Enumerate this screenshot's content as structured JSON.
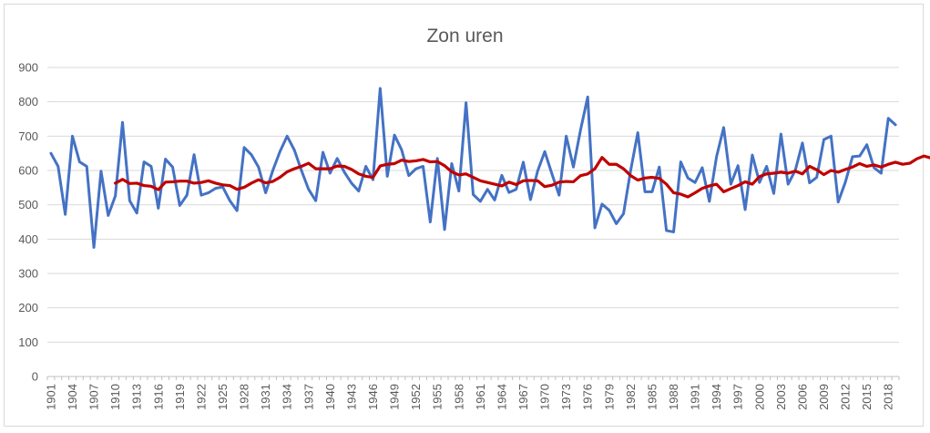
{
  "chart_data": {
    "type": "line",
    "title": "Zon uren",
    "xlabel": "",
    "ylabel": "",
    "ylim": [
      0,
      900
    ],
    "yticks": [
      0,
      100,
      200,
      300,
      400,
      500,
      600,
      700,
      800,
      900
    ],
    "xticks": [
      1901,
      1904,
      1907,
      1910,
      1913,
      1916,
      1919,
      1922,
      1925,
      1928,
      1931,
      1934,
      1937,
      1940,
      1943,
      1946,
      1949,
      1952,
      1955,
      1958,
      1961,
      1964,
      1967,
      1970,
      1973,
      1976,
      1979,
      1982,
      1985,
      1988,
      1991,
      1994,
      1997,
      2000,
      2003,
      2006,
      2009,
      2012,
      2015,
      2018
    ],
    "grid": "horizontal",
    "legend": "none",
    "x_start": 1901,
    "series": [
      {
        "color": "#4472c4",
        "values": [
          650,
          612,
          472,
          700,
          625,
          612,
          376,
          598,
          469,
          526,
          740,
          512,
          476,
          625,
          612,
          490,
          633,
          610,
          498,
          528,
          646,
          528,
          535,
          548,
          552,
          512,
          483,
          667,
          646,
          610,
          535,
          600,
          655,
          700,
          660,
          600,
          545,
          512,
          653,
          592,
          635,
          595,
          563,
          540,
          612,
          573,
          839,
          583,
          703,
          660,
          585,
          605,
          612,
          450,
          635,
          428,
          620,
          540,
          797,
          530,
          510,
          545,
          514,
          586,
          536,
          545,
          624,
          515,
          598,
          655,
          590,
          528,
          700,
          610,
          718,
          814,
          433,
          502,
          484,
          445,
          474,
          600,
          710,
          538,
          538,
          610,
          425,
          421,
          625,
          578,
          565,
          608,
          510,
          640,
          725,
          560,
          614,
          486,
          645,
          565,
          612,
          533,
          706,
          560,
          600,
          680,
          564,
          580,
          690,
          700,
          508,
          566,
          640,
          642,
          675,
          608,
          592,
          752,
          733
        ]
      },
      {
        "color": "#c00000",
        "start_year": 1910,
        "values": [
          563,
          574,
          562,
          563,
          556,
          554,
          544,
          566,
          567,
          569,
          569,
          563,
          565,
          570,
          563,
          558,
          556,
          545,
          551,
          563,
          573,
          564,
          568,
          580,
          596,
          605,
          612,
          621,
          605,
          605,
          605,
          613,
          612,
          603,
          590,
          583,
          580,
          613,
          618,
          620,
          630,
          626,
          628,
          632,
          625,
          626,
          614,
          596,
          587,
          590,
          580,
          570,
          565,
          560,
          555,
          566,
          559,
          570,
          571,
          570,
          553,
          557,
          566,
          568,
          567,
          585,
          590,
          605,
          638,
          618,
          618,
          605,
          585,
          572,
          578,
          580,
          577,
          560,
          535,
          531,
          523,
          535,
          548,
          555,
          560,
          538,
          547,
          556,
          567,
          560,
          582,
          590,
          592,
          595,
          592,
          598,
          590,
          612,
          602,
          588,
          600,
          595,
          603,
          610,
          620,
          612,
          616,
          610,
          618,
          624,
          618,
          621,
          634,
          642,
          636
        ]
      }
    ]
  }
}
